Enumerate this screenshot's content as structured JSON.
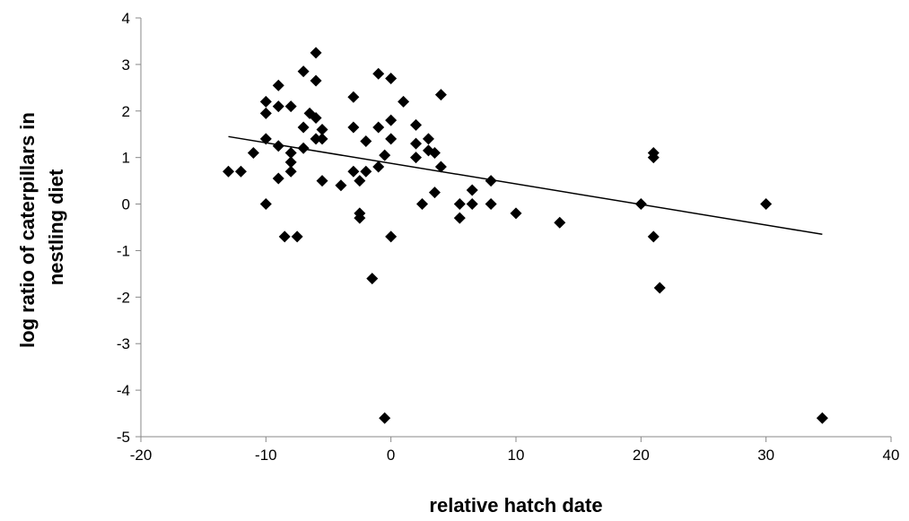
{
  "chart_data": {
    "type": "scatter",
    "title": "",
    "xlabel": "relative hatch date",
    "ylabel_lines": [
      "log ratio of caterpillars in",
      "nestling diet"
    ],
    "xlim": [
      -20,
      40
    ],
    "ylim": [
      -5,
      4
    ],
    "xticks": [
      -20,
      -10,
      0,
      10,
      20,
      30,
      40
    ],
    "yticks": [
      -5,
      -4,
      -3,
      -2,
      -1,
      0,
      1,
      2,
      3,
      4
    ],
    "grid": false,
    "legend": "none",
    "marker": "diamond",
    "marker_color": "#000000",
    "series": [
      {
        "points": [
          [
            -13,
            0.7
          ],
          [
            -12,
            0.7
          ],
          [
            -11,
            1.1
          ],
          [
            -10,
            2.2
          ],
          [
            -10,
            1.95
          ],
          [
            -10,
            1.4
          ],
          [
            -10,
            0.0
          ],
          [
            -9,
            2.55
          ],
          [
            -9,
            2.1
          ],
          [
            -9,
            1.25
          ],
          [
            -9,
            0.55
          ],
          [
            -8.5,
            -0.7
          ],
          [
            -8,
            2.1
          ],
          [
            -8,
            1.1
          ],
          [
            -8,
            0.9
          ],
          [
            -8,
            0.7
          ],
          [
            -7.5,
            -0.7
          ],
          [
            -7,
            2.85
          ],
          [
            -7,
            1.65
          ],
          [
            -7,
            1.2
          ],
          [
            -6.5,
            1.95
          ],
          [
            -6,
            3.25
          ],
          [
            -6,
            2.65
          ],
          [
            -6,
            1.85
          ],
          [
            -6,
            1.4
          ],
          [
            -5.5,
            1.6
          ],
          [
            -5.5,
            1.4
          ],
          [
            -5.5,
            0.5
          ],
          [
            -4,
            0.4
          ],
          [
            -3,
            2.3
          ],
          [
            -3,
            1.65
          ],
          [
            -3,
            0.7
          ],
          [
            -2.5,
            0.5
          ],
          [
            -2.5,
            -0.2
          ],
          [
            -2.5,
            -0.3
          ],
          [
            -2,
            1.35
          ],
          [
            -2,
            0.7
          ],
          [
            -1.5,
            -1.6
          ],
          [
            -1,
            2.8
          ],
          [
            -1,
            1.65
          ],
          [
            -1,
            0.8
          ],
          [
            -0.5,
            1.05
          ],
          [
            -0.5,
            -4.6
          ],
          [
            0,
            2.7
          ],
          [
            0,
            1.8
          ],
          [
            0,
            1.4
          ],
          [
            0,
            -0.7
          ],
          [
            1,
            2.2
          ],
          [
            2,
            1.7
          ],
          [
            2,
            1.3
          ],
          [
            2,
            1.0
          ],
          [
            2.5,
            0.0
          ],
          [
            3,
            1.4
          ],
          [
            3,
            1.15
          ],
          [
            3.5,
            1.1
          ],
          [
            3.5,
            0.25
          ],
          [
            4,
            2.35
          ],
          [
            4,
            0.8
          ],
          [
            5.5,
            0.0
          ],
          [
            5.5,
            -0.3
          ],
          [
            6.5,
            0.3
          ],
          [
            6.5,
            0.0
          ],
          [
            8,
            0.5
          ],
          [
            8,
            0.0
          ],
          [
            10,
            -0.2
          ],
          [
            13.5,
            -0.4
          ],
          [
            20,
            0.0
          ],
          [
            21,
            1.1
          ],
          [
            21,
            1.0
          ],
          [
            21,
            -0.7
          ],
          [
            21.5,
            -1.8
          ],
          [
            30,
            0.0
          ],
          [
            34.5,
            -4.6
          ]
        ]
      }
    ],
    "trendline": {
      "x": [
        -13,
        34.5
      ],
      "y": [
        1.45,
        -0.65
      ],
      "color": "#000000"
    }
  }
}
